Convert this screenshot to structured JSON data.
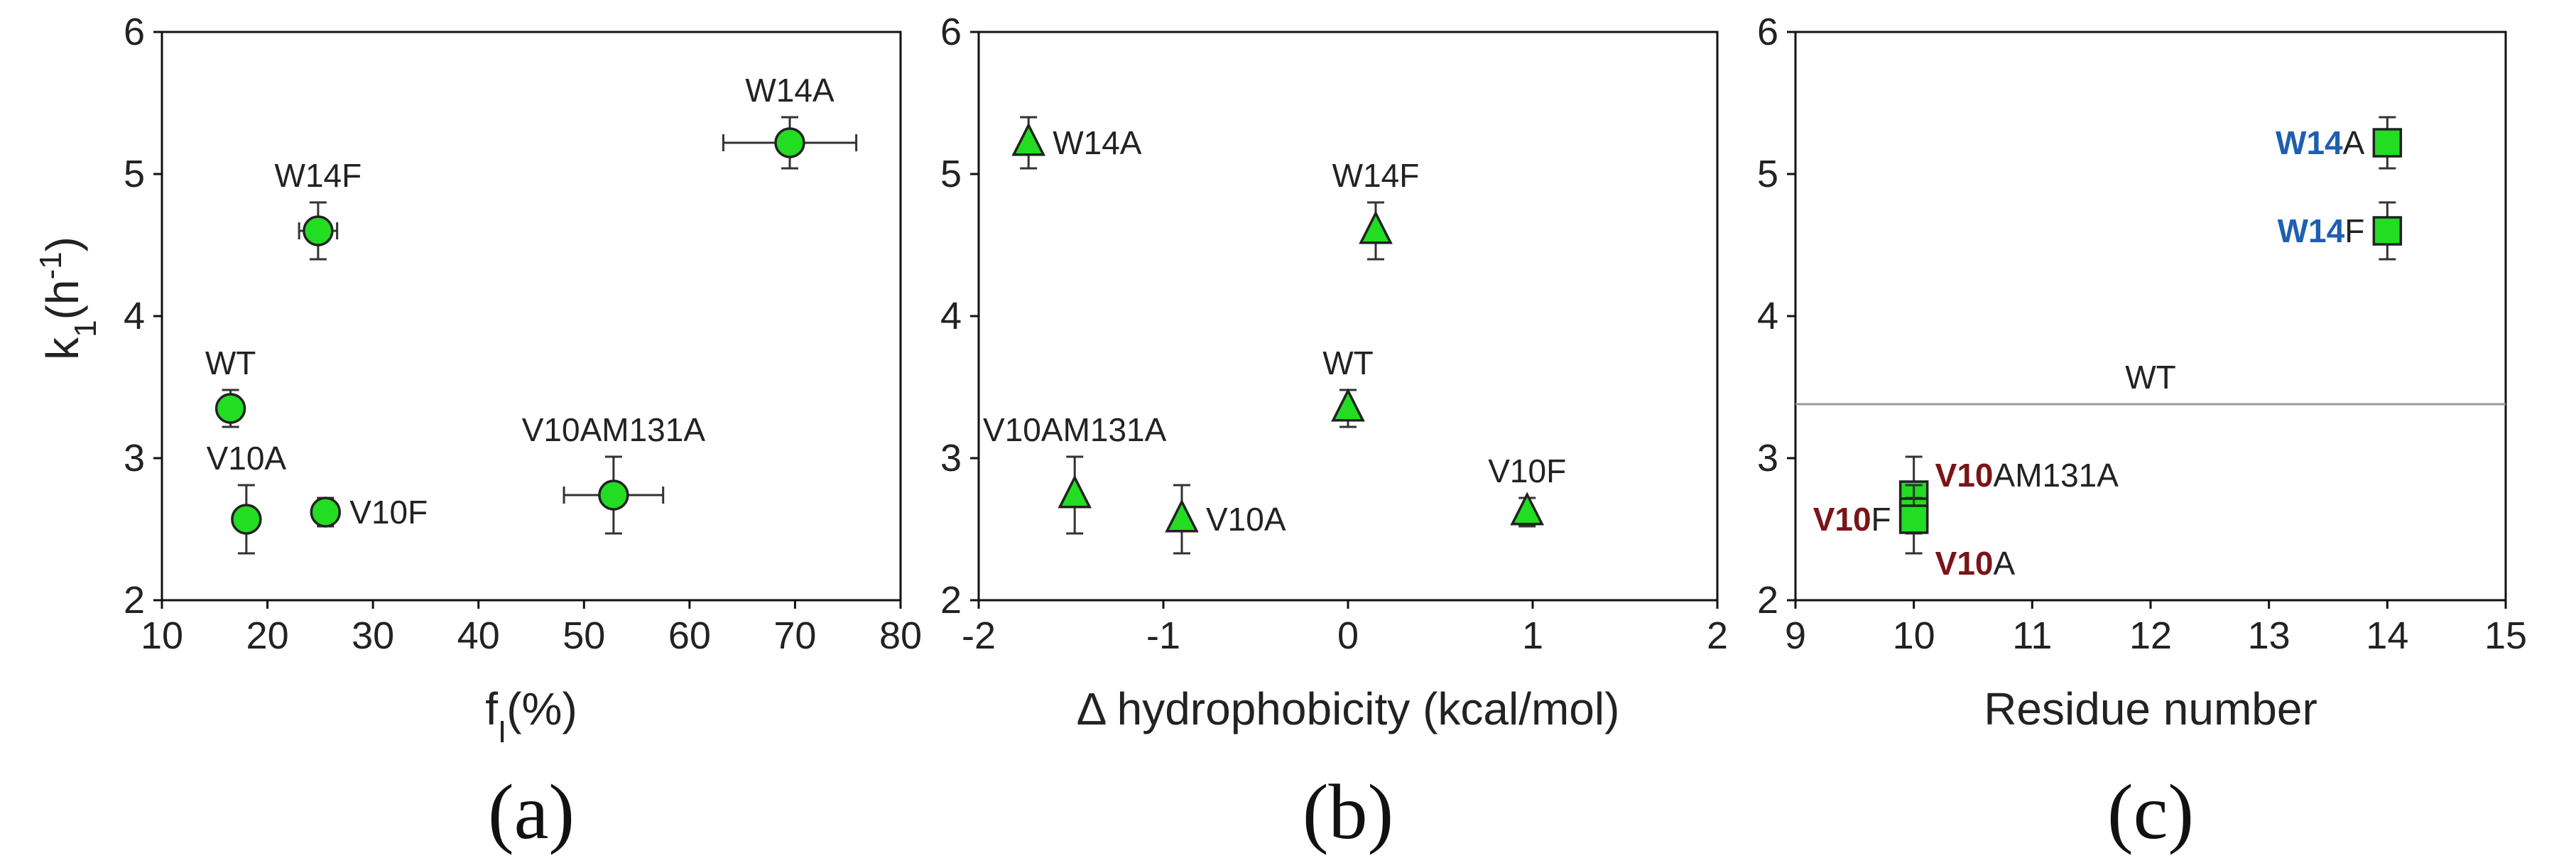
{
  "chart_data": [
    {
      "panel": "(a)",
      "type": "scatter",
      "ylabel": "k",
      "ylabel_sub": "1",
      "ylabel_rest": "(h",
      "ylabel_sup": "-1",
      "ylabel_end": ")",
      "xlabel": "f",
      "xlabel_sub": "I",
      "xlabel_rest": "(%)",
      "xlim": [
        10,
        80
      ],
      "ylim": [
        2,
        6
      ],
      "xticks": [
        "10",
        "20",
        "30",
        "40",
        "50",
        "60",
        "70",
        "80"
      ],
      "yticks": [
        "2",
        "3",
        "4",
        "5",
        "6"
      ],
      "marker": "circle",
      "points": [
        {
          "label": "WT",
          "x": 16.5,
          "y": 3.35,
          "yerr": 0.13,
          "xerr": 0,
          "label_pos": "above"
        },
        {
          "label": "V10A",
          "x": 18,
          "y": 2.57,
          "yerr": 0.24,
          "xerr": 0,
          "label_pos": "above"
        },
        {
          "label": "V10F",
          "x": 25.5,
          "y": 2.62,
          "yerr": 0.1,
          "xerr": 0.6,
          "label_pos": "right"
        },
        {
          "label": "W14F",
          "x": 24.8,
          "y": 4.6,
          "yerr": 0.2,
          "xerr": 1.8,
          "label_pos": "above"
        },
        {
          "label": "V10AM131A",
          "x": 52.8,
          "y": 2.74,
          "yerr": 0.27,
          "xerr": 4.7,
          "label_pos": "above"
        },
        {
          "label": "W14A",
          "x": 69.5,
          "y": 5.22,
          "yerr": 0.18,
          "xerr": 6.3,
          "label_pos": "above"
        }
      ]
    },
    {
      "panel": "(b)",
      "type": "scatter",
      "xlabel": "Δ hydrophobicity (kcal/mol)",
      "xlim": [
        -2,
        2
      ],
      "ylim": [
        2,
        6
      ],
      "xticks": [
        "-2",
        "-1",
        "0",
        "1",
        "2"
      ],
      "yticks": [
        "2",
        "3",
        "4",
        "5",
        "6"
      ],
      "marker": "triangle",
      "points": [
        {
          "label": "W14A",
          "x": -1.73,
          "y": 5.22,
          "yerr": 0.18,
          "label_pos": "right"
        },
        {
          "label": "V10AM131A",
          "x": -1.48,
          "y": 2.74,
          "yerr": 0.27,
          "label_pos": "above"
        },
        {
          "label": "V10A",
          "x": -0.9,
          "y": 2.57,
          "yerr": 0.24,
          "label_pos": "right"
        },
        {
          "label": "WT",
          "x": 0,
          "y": 3.35,
          "yerr": 0.13,
          "label_pos": "above"
        },
        {
          "label": "W14F",
          "x": 0.15,
          "y": 4.6,
          "yerr": 0.2,
          "label_pos": "above"
        },
        {
          "label": "V10F",
          "x": 0.97,
          "y": 2.62,
          "yerr": 0.1,
          "label_pos": "above"
        }
      ]
    },
    {
      "panel": "(c)",
      "type": "scatter",
      "xlabel": "Residue number",
      "xlim": [
        9,
        15
      ],
      "ylim": [
        2,
        6
      ],
      "xticks": [
        "9",
        "10",
        "11",
        "12",
        "13",
        "14",
        "15"
      ],
      "yticks": [
        "2",
        "3",
        "4",
        "5",
        "6"
      ],
      "marker": "square",
      "reference_line": {
        "label": "WT",
        "y": 3.38
      },
      "points": [
        {
          "prefix": "W14",
          "suffix": "A",
          "color": "blue",
          "x": 14,
          "y": 5.22,
          "yerr": 0.18,
          "label_pos": "left"
        },
        {
          "prefix": "W14",
          "suffix": "F",
          "color": "blue",
          "x": 14,
          "y": 4.6,
          "yerr": 0.2,
          "label_pos": "left"
        },
        {
          "prefix": "V10",
          "suffix": "AM131A",
          "color": "red",
          "x": 10,
          "y": 2.74,
          "yerr": 0.27,
          "label_pos": "upper-right"
        },
        {
          "prefix": "V10",
          "suffix": "F",
          "color": "red",
          "x": 10,
          "y": 2.62,
          "yerr": 0.1,
          "label_pos": "left"
        },
        {
          "prefix": "V10",
          "suffix": "A",
          "color": "red",
          "x": 10,
          "y": 2.57,
          "yerr": 0.24,
          "label_pos": "lower-right"
        }
      ]
    }
  ]
}
